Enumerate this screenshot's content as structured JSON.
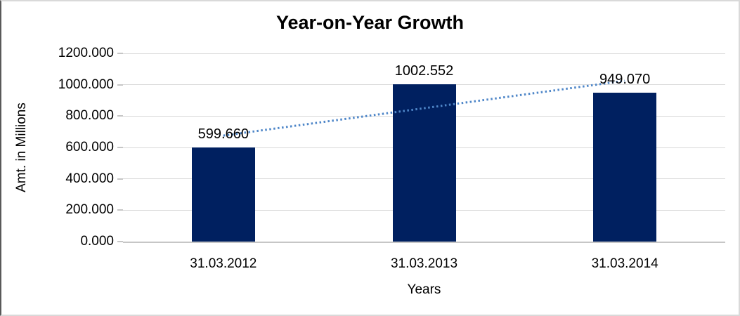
{
  "chart_data": {
    "type": "bar",
    "title": "Year-on-Year Growth",
    "xlabel": "Years",
    "ylabel": "Amt. in Millions",
    "categories": [
      "31.03.2012",
      "31.03.2013",
      "31.03.2014"
    ],
    "values": [
      599.66,
      1002.552,
      949.07
    ],
    "value_labels": [
      "599.660",
      "1002.552",
      "949.070"
    ],
    "y_ticks": [
      "0.000",
      "200.000",
      "400.000",
      "600.000",
      "800.000",
      "1000.000",
      "1200.000"
    ],
    "y_tick_values": [
      0,
      200,
      400,
      600,
      800,
      1000,
      1200
    ],
    "ylim": [
      0,
      1200
    ],
    "grid": "horizontal",
    "legend": "none",
    "bar_color": "#002060",
    "trendline": {
      "type": "linear",
      "style": "dotted",
      "color": "#4e86c8",
      "values": [
        675.72,
        850.43,
        1025.13
      ]
    }
  }
}
